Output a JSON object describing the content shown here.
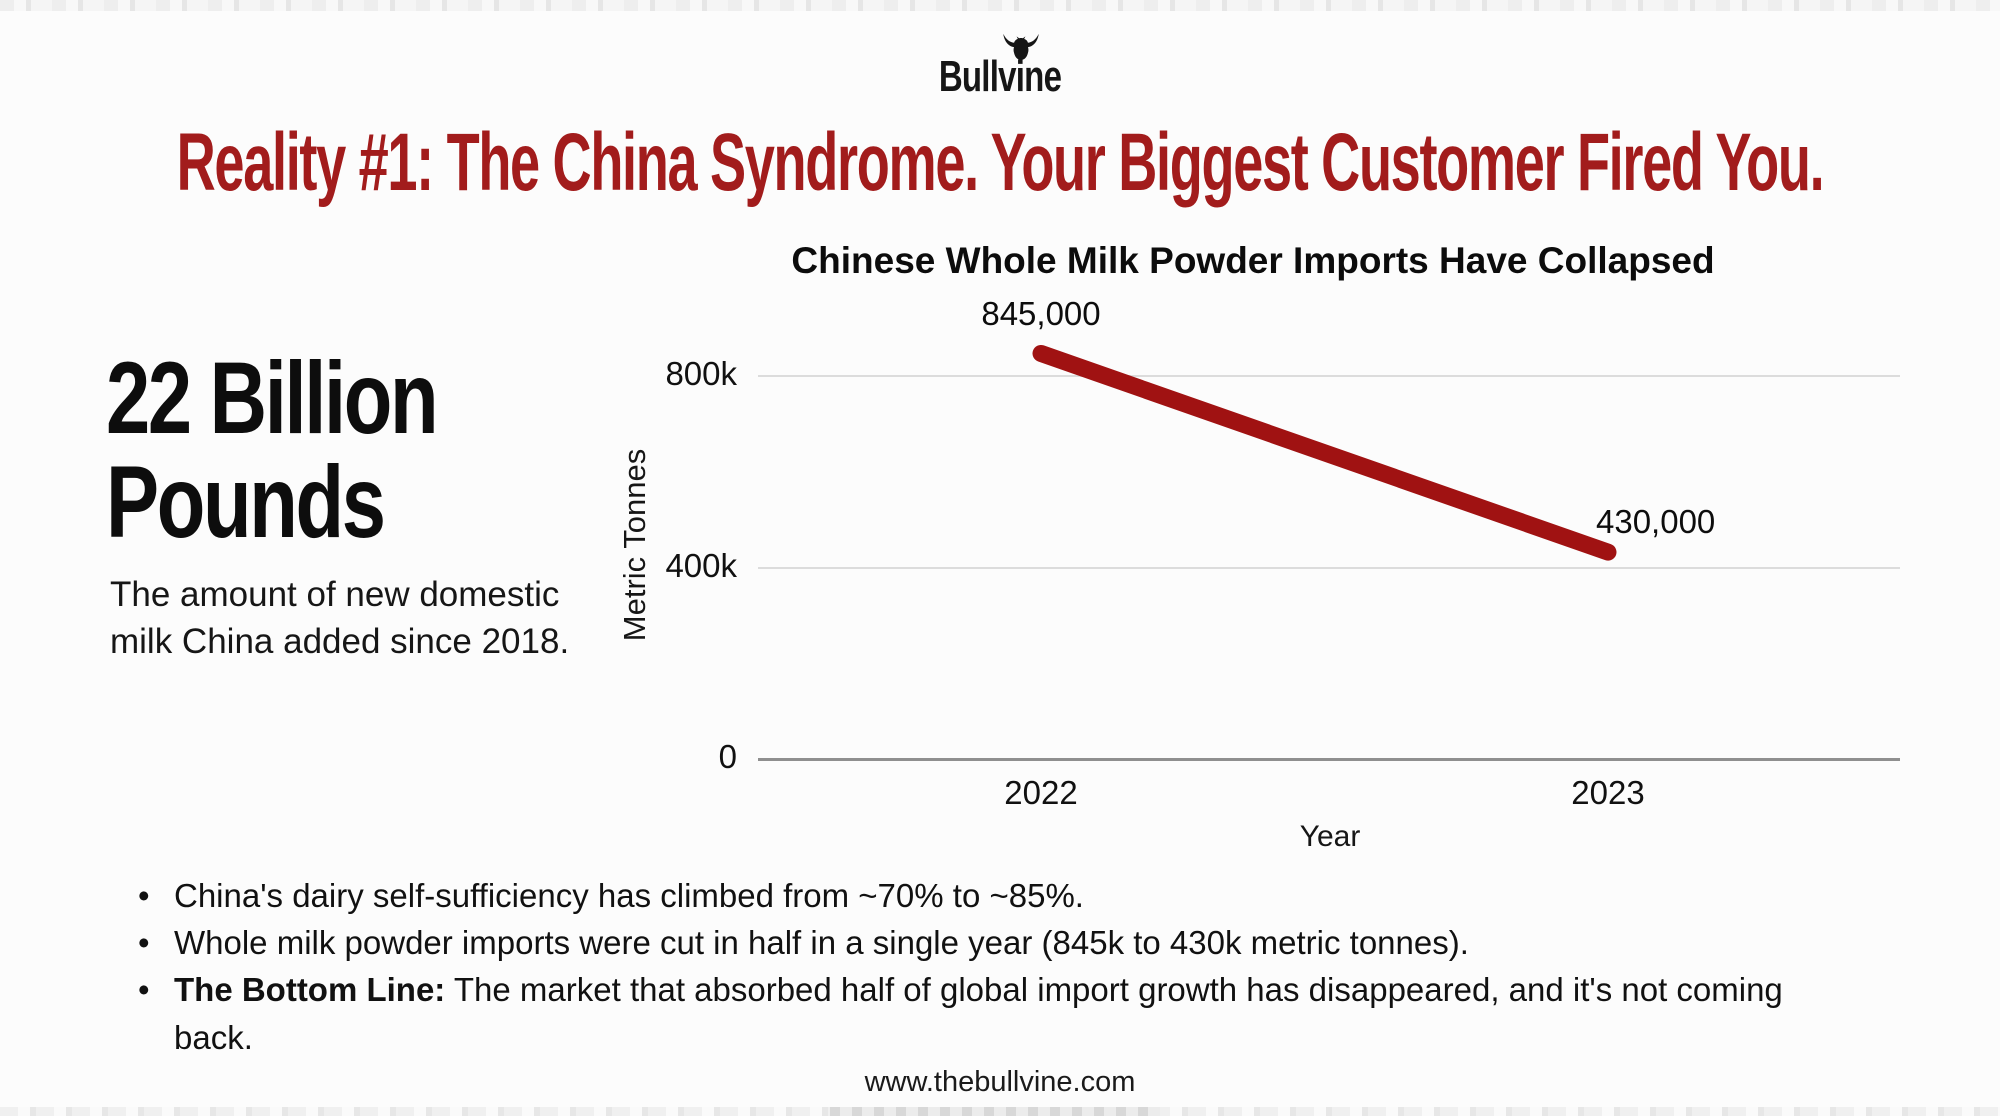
{
  "logo": {
    "text": "Bullvine"
  },
  "headline": {
    "text": "Reality #1: The China Syndrome. Your Biggest Customer Fired You.",
    "color": "#A21C1C"
  },
  "stat": {
    "value": "22 Billion Pounds",
    "description": "The amount of new domestic milk China added since 2018."
  },
  "chart_data": {
    "type": "line",
    "title": "Chinese Whole Milk Powder Imports Have Collapsed",
    "x": [
      "2022",
      "2023"
    ],
    "values": [
      845000,
      430000
    ],
    "point_labels": [
      "845,000",
      "430,000"
    ],
    "xlabel": "Year",
    "ylabel": "Metric Tonnes",
    "yticks": [
      {
        "label": "0",
        "value": 0
      },
      {
        "label": "400k",
        "value": 400000
      },
      {
        "label": "800k",
        "value": 800000
      }
    ],
    "ylim": [
      0,
      880000
    ],
    "grid": true,
    "legend": false,
    "line_color": "#A01212"
  },
  "bullets": [
    {
      "bold": "",
      "text": "China's dairy self-sufficiency has climbed from ~70% to ~85%."
    },
    {
      "bold": "",
      "text": "Whole milk powder imports were cut in half in a single year (845k to 430k metric tonnes)."
    },
    {
      "bold": "The Bottom Line:",
      "text": " The market that absorbed half of global import growth has disappeared, and it's not coming back."
    }
  ],
  "footer": {
    "url": "www.thebullvine.com"
  }
}
